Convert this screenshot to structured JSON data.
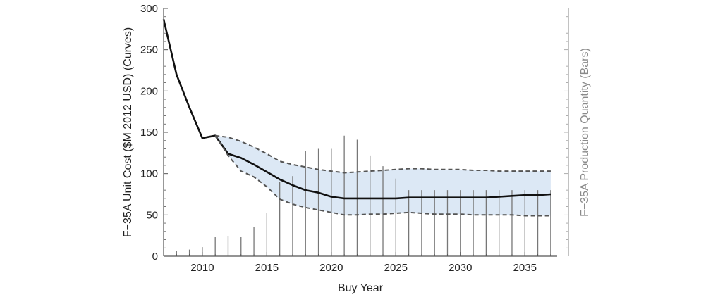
{
  "chart_data": {
    "type": "line",
    "xlabel": "Buy Year",
    "ylabel_left": "F−35A Unit Cost ($M 2012 USD) (Curves)",
    "ylabel_right": "F−35A Production Quantity (Bars)",
    "xlim": [
      2007,
      2037.5
    ],
    "ylim": [
      0,
      300
    ],
    "x_ticks": [
      2010,
      2015,
      2020,
      2025,
      2030,
      2035
    ],
    "y_ticks": [
      0,
      50,
      100,
      150,
      200,
      250,
      300
    ],
    "grid": false,
    "colors": {
      "cost_line": "#111111",
      "bounds": "#555555",
      "band_fill": "#dce8f5",
      "bars": "#777777",
      "axis": "#555555",
      "right_axis": "#9a9a9a"
    },
    "series": [
      {
        "role": "unit_cost",
        "style": "solid",
        "x": [
          2007,
          2008,
          2009,
          2010,
          2011,
          2012,
          2013,
          2014,
          2015,
          2016,
          2017,
          2018,
          2019,
          2020,
          2021,
          2022,
          2023,
          2024,
          2025,
          2026,
          2027,
          2028,
          2029,
          2030,
          2031,
          2032,
          2033,
          2034,
          2035,
          2036,
          2037
        ],
        "values": [
          287,
          220,
          180,
          143,
          146,
          124,
          119,
          111,
          102,
          93,
          86,
          80,
          77,
          72,
          70,
          70,
          70,
          70,
          70,
          71,
          71,
          71,
          71,
          71,
          71,
          71,
          72,
          73,
          74,
          74,
          75
        ]
      },
      {
        "role": "upper_bound",
        "style": "dashed",
        "x": [
          2011,
          2012,
          2013,
          2014,
          2015,
          2016,
          2017,
          2018,
          2019,
          2020,
          2021,
          2022,
          2023,
          2024,
          2025,
          2026,
          2027,
          2028,
          2029,
          2030,
          2031,
          2032,
          2033,
          2034,
          2035,
          2036,
          2037
        ],
        "values": [
          146,
          144,
          139,
          132,
          124,
          115,
          111,
          108,
          105,
          103,
          101,
          102,
          103,
          104,
          105,
          106,
          106,
          105,
          105,
          105,
          104,
          104,
          103,
          103,
          103,
          103,
          103
        ]
      },
      {
        "role": "lower_bound",
        "style": "dashed",
        "x": [
          2011,
          2012,
          2013,
          2014,
          2015,
          2016,
          2017,
          2018,
          2019,
          2020,
          2021,
          2022,
          2023,
          2024,
          2025,
          2026,
          2027,
          2028,
          2029,
          2030,
          2031,
          2032,
          2033,
          2034,
          2035,
          2036,
          2037
        ],
        "values": [
          146,
          122,
          103,
          96,
          84,
          69,
          63,
          59,
          56,
          53,
          50,
          50,
          51,
          51,
          52,
          53,
          52,
          51,
          51,
          51,
          50,
          50,
          50,
          50,
          49,
          49,
          49
        ]
      }
    ],
    "bars": {
      "x": [
        2008,
        2009,
        2010,
        2011,
        2012,
        2013,
        2014,
        2015,
        2016,
        2017,
        2018,
        2019,
        2020,
        2021,
        2022,
        2023,
        2024,
        2025,
        2026,
        2027,
        2028,
        2029,
        2030,
        2031,
        2032,
        2033,
        2034,
        2035,
        2036,
        2037
      ],
      "values": [
        6,
        8,
        11,
        23,
        24,
        23,
        35,
        52,
        90,
        97,
        127,
        130,
        130,
        146,
        141,
        122,
        109,
        94,
        80,
        80,
        80,
        80,
        80,
        80,
        80,
        80,
        80,
        80,
        80,
        80
      ]
    }
  }
}
